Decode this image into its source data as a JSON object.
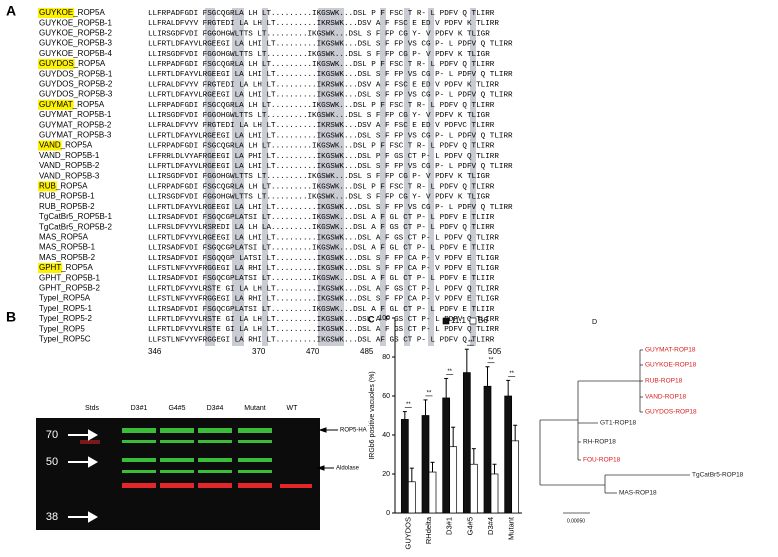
{
  "panel_a": {
    "label": "A",
    "rows": [
      {
        "strain": "GUYKOE",
        "suffix": "_ROP5A",
        "seq": "LLFRPADFGDI FSGCQGRLA LH LT.........IKGSWK...DSL P F FSC T R- L PDFV Q TLIRR"
      },
      {
        "name": "GUYKOE_ROP5B-1",
        "seq": "LLFRALDFVYV FRGTEDI LA LH LT.........IKRSWK...DSV A F FSC E ED V PDFV K TLIRR"
      },
      {
        "name": "GUYKOE_ROP5B-2",
        "seq": "LLIRSGDFVDI FGGOHGWLTTS LT.........IKGSWK...DSL S F FP CG Y- V PDFV K TLIGR"
      },
      {
        "name": "GUYKOE_ROP5B-3",
        "seq": "LLFRTLDFAYVLRGEEGI LA LHI LT.........IKGSWK...DSL S F FP VS CG P- L PDFV Q TLIRR"
      },
      {
        "name": "GUYKOE_ROP5B-4",
        "seq": "LLIRSGDFVDI FGGOHGWLTTS LT.........IKGSWK...DSL S F FP CG P- V PDFV K TLIGR"
      },
      {
        "strain": "GUYDOS",
        "suffix": "_ROP5A",
        "seq": "LLFRPADFGDI FSGCQGRLA LH LT.........IKGSWK...DSL P F FSC T R- L PDFV Q TLIRR"
      },
      {
        "name": "GUYDOS_ROP5B-1",
        "seq": "LLFRTLDFAYVLRGEEGI LA LHI LT.........IKGSWK...DSL S F FP VS CG P- L PDFV Q TLIRR"
      },
      {
        "name": "GUYDOS_ROP5B-2",
        "seq": "LLFRALDFVYV FRGTEDI LA LH LT.........IKRSWK...DSV A F FSC E ED V PDFV K TLIRR"
      },
      {
        "name": "GUYDOS_ROP5B-3",
        "seq": "LLFRTLDFAYVLRGEEGI LA LHI LT.........IKGSWK...DSL S F FP VS CG P- L PDFV Q TLIRR"
      },
      {
        "strain": "GUYMAT",
        "suffix": "_ROP5A",
        "seq": "LLFRPADFGDI FSGCQGRLA LH LT.........IKGSWK...DSL P F FSC T R- L PDFV Q TLIRR"
      },
      {
        "name": "GUYMAT_ROP5B-1",
        "seq": "LLIRSGDFVDI FGGOHGWLTTS LT.........IKGSWK...DSL S F FP CG Y- V PDFV K TLIGR"
      },
      {
        "name": "GUYMAT_ROP5B-2",
        "seq": "LLFRALDFVYV FRGTEDI LA LH LT.........IKRSWK...DSV A F FSC E ED V PDFVC TLIRR"
      },
      {
        "name": "GUYMAT_ROP5B-3",
        "seq": "LLFRTLDFAYVLRGEEGI LA LHI LT.........IKGSWK...DSL S F FP VS CG P- L PDFV Q TLIRR"
      },
      {
        "strain": "VAND",
        "suffix": "_ROP5A",
        "seq": "LLFRPADFGDI FSGCQGRLA LH LT.........IKGSWK...DSL P F FSC T R- L PDFV Q TLIRR"
      },
      {
        "name": "VAND_ROP5B-1",
        "seq": "LFFRRLDLVYAFRGEEGI LA PHI LT.........IKGSWK...DSL P F GS CT P- L PDFV Q TLIRR"
      },
      {
        "name": "VAND_ROP5B-2",
        "seq": "LLFRTLDFAYVLRGEEGI LA LHI LT.........IKGSWK...DSL S F FP VS CG P- L PDFV Q TLIRR"
      },
      {
        "name": "VAND_ROP5B-3",
        "seq": "LLIRSGDFVDI FGGOHGWLTTS LT.........IKGSWK...DSL S F FP CG P- V PDFV K TLIGR"
      },
      {
        "strain": "RUB",
        "suffix": "_ROP5A",
        "seq": "LLFRPADFGDI FSGCQGRLA LH LT.........IKGSWK...DSL P F FSC T R- L PDFV Q TLIRR"
      },
      {
        "name": "RUB_ROP5B-1",
        "seq": "LLIRSGDFVDI FGGOHGWLTTS LT.........IKGSWK...DSL S F FP CG Y- V PDFV K TLIGR"
      },
      {
        "name": "RUB_ROP5B-2",
        "seq": "LLFRTLDFAYVLRGEEGI LA LHI LT.........IKGSWK...DSL S F FP VS CG P- L PDFV Q TLIRR"
      },
      {
        "name": "TgCatBr5_ROP5B-1",
        "seq": "LLIRSADFVDI FSGQCGPLATSI LT.........IKGSWK...DSL A F GL CT P- L PDFV E TLIIR"
      },
      {
        "name": "TgCatBr5_ROP5B-2",
        "seq": "LLFRSLDFVYVLRSREDI LA LH LA.........IKGSWK...DSL A F GS CT P- L PDFV Q TLIRR"
      },
      {
        "name": "MAS_ROP5A",
        "seq": "LLFRTLDFVYVLRGEEGI LA LHI LT.........IKGSWK...DSL A F GS CT P- L PDFV Q TLIRR"
      },
      {
        "name": "MAS_ROP5B-1",
        "seq": "LLIRSADFVDI FSGQCGPLATSI LT.........IKGSWK...DSL A F GL CT P- L PDFV E TLIIR"
      },
      {
        "name": "MAS_ROP5B-2",
        "seq": "LLIRSADFVDI FSGQQGP LATSI LT.........IKGSWK...DSL S F FP CA P- V PDFV E TLIGR"
      },
      {
        "strain": "GPHT",
        "suffix": "_ROP5A",
        "seq": "LLFSTLNFVYVFRGGEGI LA RHI LT.........IKGSWK...DSL S F FP CA P- V PDFV E TLIGR"
      },
      {
        "name": "GPHT_ROP5B-1",
        "seq": "LLIRSADFVDI FSGQCGPLATSI LT.........IKGSWK...DSL A F GL CT P- L PDFV E TLIIR"
      },
      {
        "name": "GPHT_ROP5B-2",
        "seq": "LLFRTLDFVYVLRSTE GI LA LH LT.........IKGSWK...DSL A F GS CT P- L PDFV Q TLIRR"
      },
      {
        "name": "TypeI_ROP5A",
        "seq": "LLFSTLNFVYVFRGGEGI LA RHI LT.........IKGSWK...DSL S F FP CA P- V PDFV E TLIGR"
      },
      {
        "name": "TypeI_ROP5-1",
        "seq": "LLIRSADFVDI FSGQCGPLATSI LT.........IKGSWK...DSL A F GL CT P- L PDFV E TLIIR"
      },
      {
        "name": "TypeI_ROP5-2",
        "seq": "LLFRTLDFVYVLRSTE GI LA LH LT.........IKGSWK...DSL A F GS CT P- L PDFV Q TLIRR"
      },
      {
        "name": "TypeI_ROP5",
        "seq": "LLFRTLDFVYVLRSTE GI LA LH LT.........IKGSWK...DSL A F GS CT P- L PDFV Q TLIRR"
      },
      {
        "name": "TypeI_ROP5C",
        "seq": "LLFSTLNFVYVFRGGEGI LA RHI LT.........IKGSWK...DSL AF GS CT P- L PDFV Q TLIRR"
      }
    ],
    "positions": [
      "346",
      "370",
      "470",
      "485",
      "505"
    ]
  },
  "panel_b": {
    "label": "B",
    "lanes": [
      "Stds",
      "D3#1",
      "G4#5",
      "D3#4",
      "Mutant",
      "WT"
    ],
    "markers": [
      "70",
      "50",
      "38"
    ],
    "bands": [
      "ROP5-HA",
      "Aldolase"
    ]
  },
  "chart_data": {
    "type": "bar",
    "label": "C",
    "ylabel": "IRGb6 positive vacuoles (%)",
    "categories": [
      "GUYDOS",
      "RHdelta",
      "D3#1",
      "G4#5",
      "D3#4",
      "Mutant"
    ],
    "series": [
      {
        "name": "11.1",
        "color": "#111111",
        "values": [
          48,
          50,
          59,
          72,
          65,
          60
        ],
        "errors": [
          4,
          8,
          10,
          12,
          10,
          8
        ]
      },
      {
        "name": "B6",
        "color": "#ffffff",
        "values": [
          16,
          21,
          34,
          25,
          20,
          37
        ],
        "errors": [
          7,
          5,
          10,
          8,
          5,
          8
        ]
      }
    ],
    "significance": [
      "**",
      "**",
      "**",
      "**",
      "**",
      "**"
    ],
    "ylim": [
      0,
      100
    ],
    "yticks": [
      0,
      20,
      40,
      60,
      80,
      100
    ]
  },
  "panel_d": {
    "label": "D",
    "leaves": [
      "GUYMAT-ROP18",
      "GUYKOE-ROP18",
      "RUB-ROP18",
      "VAND-ROP18",
      "GUYDOS-ROP18",
      "GT1-ROP18",
      "RH-ROP18",
      "FOU-ROP18",
      "TgCatBr5-ROP18",
      "MAS-ROP18"
    ],
    "highlighted": [
      true,
      true,
      true,
      true,
      true,
      false,
      false,
      true,
      false,
      false
    ],
    "scale": "0.00050"
  }
}
